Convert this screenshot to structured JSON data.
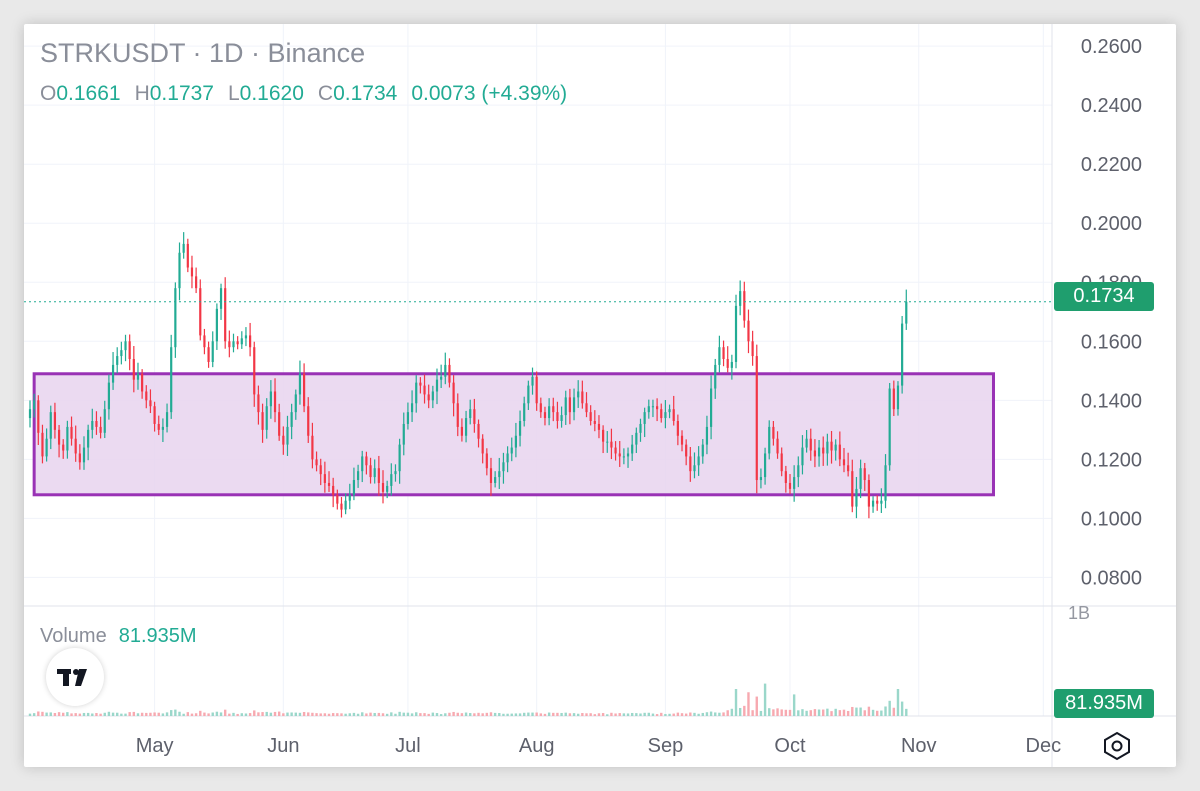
{
  "header": {
    "symbol": "STRKUSDT",
    "sep1": " · ",
    "interval": "1D",
    "sep2": " · ",
    "exchange": "Binance"
  },
  "ohlc": {
    "o_label": "O",
    "o_value": "0.1661",
    "h_label": "H",
    "h_value": "0.1737",
    "l_label": "L",
    "l_value": "0.1620",
    "c_label": "C",
    "c_value": "0.1734",
    "change": "0.0073 (+4.39%)"
  },
  "volume": {
    "label": "Volume",
    "value": "81.935M",
    "axis_label": "1B"
  },
  "price_badge": "0.1734",
  "volume_badge": "81.935M",
  "icons": {
    "logo": "tradingview-logo-icon",
    "settings": "settings-hexagon-icon"
  },
  "colors": {
    "up": "#22ab94",
    "down": "#f23645",
    "box_fill": "#e7d3ef",
    "box_stroke": "#9932b5",
    "last_price_line": "#22ab94",
    "badge": "#1f9e6e",
    "axis_text": "#5d606b",
    "grid": "#f0f3fa"
  },
  "chart_data": {
    "type": "candlestick",
    "title": "STRKUSDT · 1D · Binance",
    "y_ticks": [
      "0.2600",
      "0.2400",
      "0.2200",
      "0.2000",
      "0.1800",
      "0.1600",
      "0.1400",
      "0.1200",
      "0.1000",
      "0.0800"
    ],
    "ylim": [
      0.071,
      0.2675
    ],
    "x_ticks": [
      "May",
      "Jun",
      "Jul",
      "Aug",
      "Sep",
      "Oct",
      "Nov",
      "Dec"
    ],
    "x_tick_days": [
      30,
      61,
      91,
      122,
      153,
      183,
      214,
      244
    ],
    "first_day": 0,
    "last_price": 0.1734,
    "range_box": {
      "top": 0.149,
      "bottom": 0.108,
      "start_day": 1,
      "end_day": 232
    },
    "close_series": [
      0.137,
      0.14,
      0.129,
      0.121,
      0.127,
      0.136,
      0.13,
      0.125,
      0.123,
      0.131,
      0.127,
      0.122,
      0.119,
      0.124,
      0.13,
      0.133,
      0.131,
      0.129,
      0.137,
      0.146,
      0.152,
      0.155,
      0.157,
      0.16,
      0.154,
      0.147,
      0.149,
      0.143,
      0.14,
      0.138,
      0.132,
      0.13,
      0.131,
      0.136,
      0.158,
      0.178,
      0.19,
      0.193,
      0.185,
      0.182,
      0.178,
      0.162,
      0.158,
      0.153,
      0.16,
      0.171,
      0.178,
      0.16,
      0.158,
      0.16,
      0.159,
      0.161,
      0.162,
      0.158,
      0.142,
      0.136,
      0.13,
      0.138,
      0.143,
      0.136,
      0.128,
      0.125,
      0.131,
      0.136,
      0.142,
      0.149,
      0.138,
      0.128,
      0.12,
      0.118,
      0.115,
      0.112,
      0.111,
      0.108,
      0.105,
      0.103,
      0.106,
      0.108,
      0.113,
      0.116,
      0.121,
      0.118,
      0.114,
      0.117,
      0.112,
      0.109,
      0.111,
      0.115,
      0.116,
      0.125,
      0.132,
      0.136,
      0.139,
      0.146,
      0.145,
      0.142,
      0.14,
      0.143,
      0.147,
      0.148,
      0.152,
      0.146,
      0.139,
      0.131,
      0.128,
      0.134,
      0.137,
      0.132,
      0.127,
      0.122,
      0.117,
      0.112,
      0.114,
      0.116,
      0.119,
      0.122,
      0.124,
      0.128,
      0.133,
      0.139,
      0.145,
      0.148,
      0.139,
      0.136,
      0.134,
      0.138,
      0.136,
      0.133,
      0.135,
      0.141,
      0.136,
      0.141,
      0.143,
      0.139,
      0.136,
      0.133,
      0.132,
      0.13,
      0.126,
      0.126,
      0.124,
      0.122,
      0.121,
      0.121,
      0.122,
      0.125,
      0.129,
      0.132,
      0.136,
      0.138,
      0.138,
      0.137,
      0.134,
      0.136,
      0.137,
      0.133,
      0.128,
      0.125,
      0.121,
      0.116,
      0.118,
      0.121,
      0.125,
      0.131,
      0.144,
      0.152,
      0.158,
      0.154,
      0.151,
      0.153,
      0.172,
      0.177,
      0.167,
      0.16,
      0.155,
      0.113,
      0.114,
      0.122,
      0.131,
      0.127,
      0.122,
      0.116,
      0.112,
      0.11,
      0.114,
      0.118,
      0.124,
      0.127,
      0.123,
      0.121,
      0.124,
      0.122,
      0.126,
      0.123,
      0.125,
      0.12,
      0.118,
      0.116,
      0.104,
      0.11,
      0.117,
      0.113,
      0.104,
      0.106,
      0.105,
      0.106,
      0.118,
      0.144,
      0.137,
      0.145,
      0.166,
      0.1734
    ],
    "volume_series_note": "relative volumes; last bar = 81.935M, axis top label 1B"
  }
}
